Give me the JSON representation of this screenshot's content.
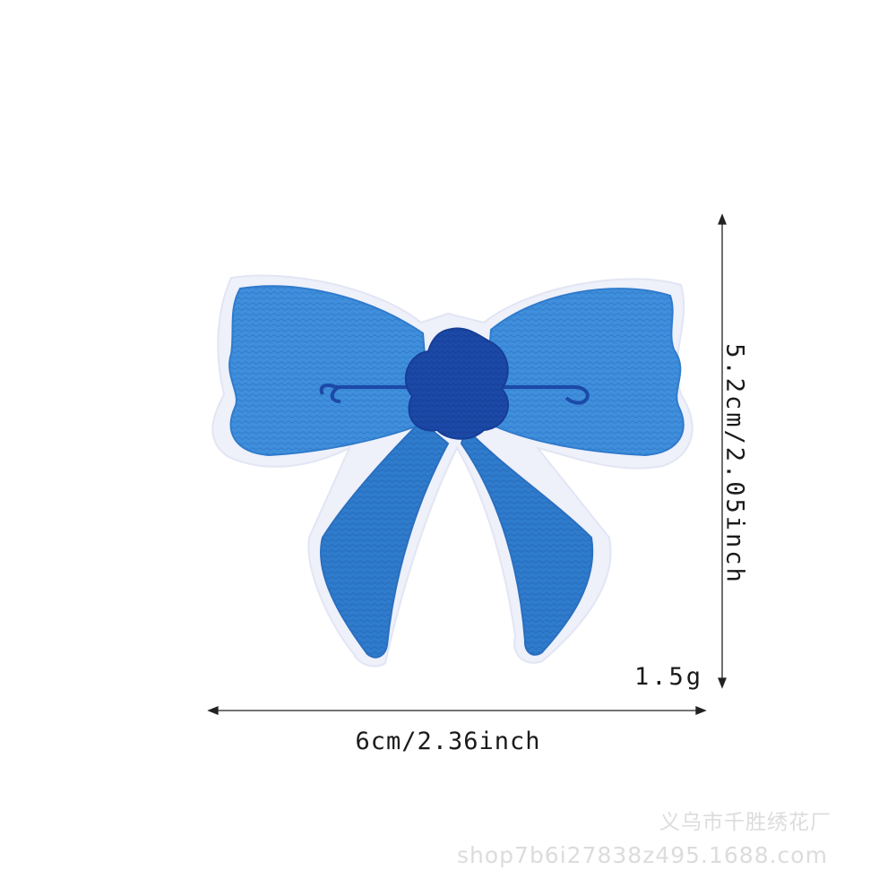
{
  "product": {
    "name_icon": "blue-bow-patch",
    "colors": {
      "bow_light": "#3f8fdc",
      "bow_mid": "#2f7bcc",
      "knot": "#1c49a8",
      "border": "#eef0fa",
      "background": "#ffffff"
    }
  },
  "dimensions": {
    "width": "6cm/2.36inch",
    "height": "5.2cm/2.05inch",
    "weight": "1.5g"
  },
  "watermark": {
    "company": "义乌市千胜绣花厂",
    "url": "shop7b6i27838z495.1688.com"
  }
}
